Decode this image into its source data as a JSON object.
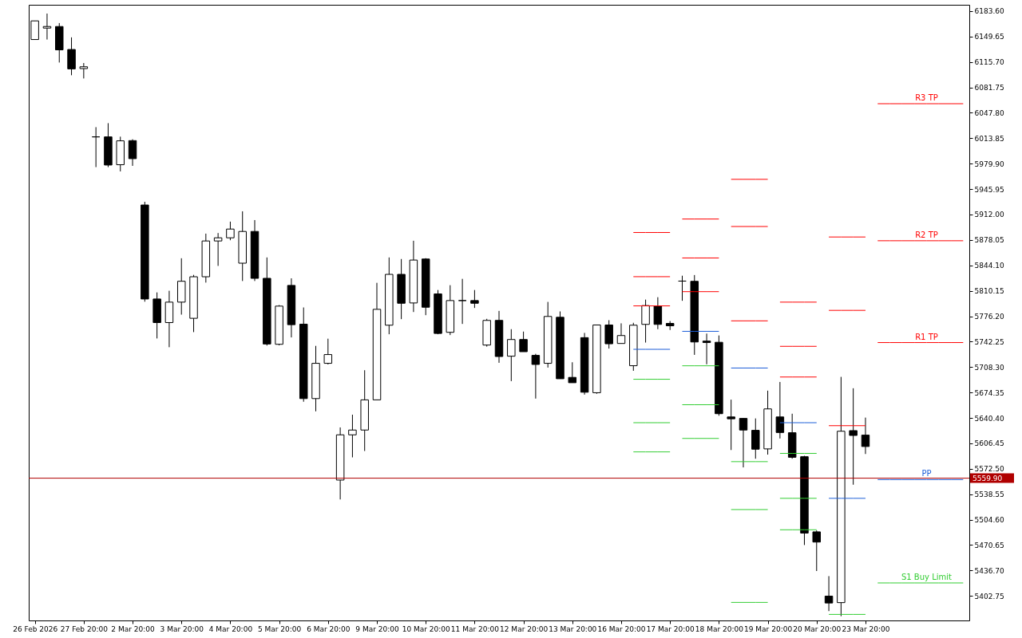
{
  "chart_data": {
    "type": "candlestick",
    "color": "#000000",
    "categories": [
      "26 Feb 2026",
      null,
      null,
      null,
      "27 Feb 20:00",
      null,
      null,
      null,
      "2 Mar 20:00",
      null,
      null,
      null,
      "3 Mar 20:00",
      null,
      null,
      null,
      "4 Mar 20:00",
      null,
      null,
      null,
      "5 Mar 20:00",
      null,
      null,
      null,
      "6 Mar 20:00",
      null,
      null,
      null,
      "9 Mar 20:00",
      null,
      null,
      null,
      "10 Mar 20:00",
      null,
      null,
      null,
      "11 Mar 20:00",
      null,
      null,
      null,
      "12 Mar 20:00",
      null,
      null,
      null,
      "13 Mar 20:00",
      null,
      null,
      null,
      "16 Mar 20:00",
      null,
      null,
      null,
      "17 Mar 20:00",
      null,
      null,
      null,
      "18 Mar 20:00",
      null,
      null,
      null,
      "19 Mar 20:00",
      null,
      null,
      null,
      "20 Mar 20:00",
      null,
      null,
      null,
      "23 Mar 20:00",
      null,
      null,
      null,
      null,
      null,
      null,
      null,
      null
    ],
    "ohlc": [
      [
        6145.7,
        6170.6,
        6145.7,
        6170.6
      ],
      [
        6161.0,
        6180.4,
        6145.7,
        6163.1
      ],
      [
        6163.1,
        6167.7,
        6115.0,
        6131.9
      ],
      [
        6132.4,
        6148.6,
        6098.0,
        6106.5
      ],
      [
        6106.9,
        6114.3,
        6093.7,
        6109.3
      ],
      [
        6015.7,
        6028.7,
        5975.3,
        6015.7
      ],
      [
        6015.7,
        6034.0,
        5975.3,
        5978.1
      ],
      [
        5978.5,
        6016.0,
        5969.6,
        6010.4
      ],
      [
        6010.7,
        6012.5,
        5977.0,
        5986.6
      ],
      [
        5924.7,
        5929.0,
        5795.6,
        5799.2
      ],
      [
        5799.2,
        5808.0,
        5746.5,
        5767.7
      ],
      [
        5767.7,
        5810.2,
        5734.8,
        5795.0
      ],
      [
        5795.0,
        5853.6,
        5778.3,
        5822.9
      ],
      [
        5773.4,
        5831.4,
        5755.0,
        5828.9
      ],
      [
        5828.9,
        5886.5,
        5821.1,
        5876.7
      ],
      [
        5876.7,
        5887.3,
        5843.4,
        5880.9
      ],
      [
        5880.9,
        5902.5,
        5877.7,
        5892.6
      ],
      [
        5847.0,
        5916.3,
        5823.2,
        5889.4
      ],
      [
        5889.4,
        5904.6,
        5823.2,
        5826.8
      ],
      [
        5826.8,
        5854.7,
        5737.0,
        5739.1
      ],
      [
        5738.7,
        5791.1,
        5737.3,
        5789.7
      ],
      [
        5817.3,
        5826.8,
        5747.9,
        5764.9
      ],
      [
        5765.6,
        5787.9,
        5662.0,
        5666.2
      ],
      [
        5666.2,
        5736.6,
        5649.2,
        5713.3
      ],
      [
        5713.3,
        5746.2,
        5711.8,
        5725.0
      ],
      [
        5557.4,
        5627.7,
        5531.5,
        5617.8
      ],
      [
        5617.8,
        5644.7,
        5587.7,
        5624.2
      ],
      [
        5624.2,
        5704.1,
        5596.2,
        5664.5
      ],
      [
        5664.5,
        5820.8,
        5664.5,
        5785.4
      ],
      [
        5764.2,
        5854.7,
        5752.1,
        5832.1
      ],
      [
        5832.1,
        5852.6,
        5772.3,
        5793.5
      ],
      [
        5793.9,
        5877.0,
        5781.8,
        5851.2
      ],
      [
        5852.6,
        5853.7,
        5777.6,
        5788.2
      ],
      [
        5806.0,
        5811.2,
        5752.1,
        5753.2
      ],
      [
        5754.7,
        5817.6,
        5751.0,
        5797.1
      ],
      [
        5797.1,
        5826.1,
        5765.9,
        5797.1
      ],
      [
        5797.1,
        5811.2,
        5787.2,
        5793.5
      ],
      [
        5737.7,
        5772.7,
        5735.6,
        5770.6
      ],
      [
        5770.6,
        5783.3,
        5714.0,
        5722.4
      ],
      [
        5722.8,
        5758.9,
        5689.5,
        5745.1
      ],
      [
        5745.1,
        5755.7,
        5728.8,
        5728.8
      ],
      [
        5723.9,
        5726.0,
        5666.2,
        5711.8
      ],
      [
        5713.3,
        5795.3,
        5707.6,
        5775.9
      ],
      [
        5774.8,
        5782.6,
        5692.7,
        5692.7
      ],
      [
        5694.5,
        5714.7,
        5687.4,
        5687.4
      ],
      [
        5747.6,
        5753.9,
        5671.5,
        5674.7
      ],
      [
        5674.0,
        5764.5,
        5672.6,
        5764.5
      ],
      [
        5764.5,
        5770.9,
        5733.0,
        5739.4
      ],
      [
        5739.8,
        5766.7,
        5739.8,
        5750.4
      ],
      [
        5710.1,
        5767.4,
        5703.3,
        5764.2
      ],
      [
        5765.3,
        5798.4,
        5741.0,
        5790.4
      ],
      [
        5789.7,
        5801.6,
        5758.9,
        5765.3
      ],
      [
        5766.6,
        5769.7,
        5757.8,
        5763.4
      ],
      [
        5823.1,
        5830.3,
        5796.8,
        5823.1
      ],
      [
        5822.8,
        5831.2,
        5724.6,
        5741.8
      ],
      [
        5743.0,
        5753.0,
        5712.0,
        5741.0
      ],
      [
        5741.4,
        5750.5,
        5643.3,
        5646.0
      ],
      [
        5641.7,
        5664.8,
        5597.5,
        5639.2
      ],
      [
        5639.7,
        5639.7,
        5574.3,
        5624.2
      ],
      [
        5623.8,
        5639.7,
        5585.9,
        5598.6
      ],
      [
        5599.0,
        5676.8,
        5591.4,
        5652.4
      ],
      [
        5641.7,
        5688.4,
        5612.9,
        5620.9
      ],
      [
        5620.6,
        5646.0,
        5585.9,
        5587.8
      ],
      [
        5588.6,
        5589.8,
        5470.6,
        5486.6
      ],
      [
        5488.2,
        5490.1,
        5435.9,
        5474.6
      ],
      [
        5402.4,
        5429.1,
        5382.4,
        5393.2
      ],
      [
        5393.7,
        5695.2,
        5375.6,
        5622.6
      ],
      [
        5623.4,
        5680.0,
        5551.2,
        5617.0
      ],
      [
        5617.4,
        5640.8,
        5592.2,
        5602.2
      ],
      null,
      null,
      null,
      null,
      null,
      null,
      null,
      null
    ],
    "series": [
      {
        "type": "line",
        "color": "#ff0000",
        "values": [
          null,
          null,
          null,
          null,
          null,
          null,
          null,
          null,
          null,
          null,
          null,
          null,
          null,
          null,
          null,
          null,
          null,
          null,
          null,
          null,
          null,
          null,
          null,
          null,
          null,
          null,
          null,
          null,
          null,
          null,
          null,
          null,
          null,
          null,
          null,
          null,
          null,
          null,
          null,
          null,
          null,
          null,
          null,
          null,
          null,
          null,
          null,
          null,
          null,
          5888,
          5888,
          5888,
          5888,
          5906,
          5906,
          5906,
          5906,
          5959,
          5959,
          5959,
          5959,
          5795,
          5795,
          5795,
          5795,
          5882,
          5882,
          5882,
          5882,
          null,
          null,
          null,
          null,
          null,
          null,
          null,
          null
        ]
      },
      {
        "type": "line",
        "color": "#ff0000",
        "values": [
          null,
          null,
          null,
          null,
          null,
          null,
          null,
          null,
          null,
          null,
          null,
          null,
          null,
          null,
          null,
          null,
          null,
          null,
          null,
          null,
          null,
          null,
          null,
          null,
          null,
          null,
          null,
          null,
          null,
          null,
          null,
          null,
          null,
          null,
          null,
          null,
          null,
          null,
          null,
          null,
          null,
          null,
          null,
          null,
          null,
          null,
          null,
          null,
          null,
          5829,
          5829,
          5829,
          5829,
          5854,
          5854,
          5854,
          5854,
          5896,
          5896,
          5896,
          5896,
          5736,
          5736,
          5736,
          5736,
          5784,
          5784,
          5784,
          5784,
          null,
          null,
          null,
          null,
          null,
          null,
          null,
          null
        ]
      },
      {
        "type": "line",
        "color": "#ff0000",
        "values": [
          null,
          null,
          null,
          null,
          null,
          null,
          null,
          null,
          null,
          null,
          null,
          null,
          null,
          null,
          null,
          null,
          null,
          null,
          null,
          null,
          null,
          null,
          null,
          null,
          null,
          null,
          null,
          null,
          null,
          null,
          null,
          null,
          null,
          null,
          null,
          null,
          null,
          null,
          null,
          null,
          null,
          null,
          null,
          null,
          null,
          null,
          null,
          null,
          null,
          5790,
          5790,
          5790,
          5790,
          5809,
          5809,
          5809,
          5809,
          5770,
          5770,
          5770,
          5770,
          5695,
          5695,
          5695,
          5695,
          5630,
          5630,
          5630,
          5630,
          null,
          null,
          null,
          null,
          null,
          null,
          null,
          null
        ]
      },
      {
        "type": "line",
        "color": "#1e5fd8",
        "values": [
          null,
          null,
          null,
          null,
          null,
          null,
          null,
          null,
          null,
          null,
          null,
          null,
          null,
          null,
          null,
          null,
          null,
          null,
          null,
          null,
          null,
          null,
          null,
          null,
          null,
          null,
          null,
          null,
          null,
          null,
          null,
          null,
          null,
          null,
          null,
          null,
          null,
          null,
          null,
          null,
          null,
          null,
          null,
          null,
          null,
          null,
          null,
          null,
          null,
          5732,
          5732,
          5732,
          5732,
          5756,
          5756,
          5756,
          5756,
          5707,
          5707,
          5707,
          5707,
          5634,
          5634,
          5634,
          5634,
          5533,
          5533,
          5533,
          5533,
          null,
          null,
          null,
          null,
          null,
          null,
          null,
          null
        ]
      },
      {
        "type": "line",
        "color": "#32cd32",
        "values": [
          null,
          null,
          null,
          null,
          null,
          null,
          null,
          null,
          null,
          null,
          null,
          null,
          null,
          null,
          null,
          null,
          null,
          null,
          null,
          null,
          null,
          null,
          null,
          null,
          null,
          null,
          null,
          null,
          null,
          null,
          null,
          null,
          null,
          null,
          null,
          null,
          null,
          null,
          null,
          null,
          null,
          null,
          null,
          null,
          null,
          null,
          null,
          null,
          null,
          5692,
          5692,
          5692,
          5692,
          5710,
          5710,
          5710,
          5710,
          5582,
          5582,
          5582,
          5582,
          5593,
          5593,
          5593,
          5593,
          5378,
          5378,
          5378,
          5378,
          null,
          null,
          null,
          null,
          null,
          null,
          null,
          null
        ]
      },
      {
        "type": "line",
        "color": "#32cd32",
        "values": [
          null,
          null,
          null,
          null,
          null,
          null,
          null,
          null,
          null,
          null,
          null,
          null,
          null,
          null,
          null,
          null,
          null,
          null,
          null,
          null,
          null,
          null,
          null,
          null,
          null,
          null,
          null,
          null,
          null,
          null,
          null,
          null,
          null,
          null,
          null,
          null,
          null,
          null,
          null,
          null,
          null,
          null,
          null,
          null,
          null,
          null,
          null,
          null,
          null,
          5634,
          5634,
          5634,
          5634,
          5658,
          5658,
          5658,
          5658,
          5518,
          5518,
          5518,
          5518,
          5533,
          5533,
          5533,
          5533,
          null,
          null,
          null,
          null,
          null,
          null,
          null,
          null,
          null,
          null,
          null,
          null
        ]
      },
      {
        "type": "line",
        "color": "#32cd32",
        "values": [
          null,
          null,
          null,
          null,
          null,
          null,
          null,
          null,
          null,
          null,
          null,
          null,
          null,
          null,
          null,
          null,
          null,
          null,
          null,
          null,
          null,
          null,
          null,
          null,
          null,
          null,
          null,
          null,
          null,
          null,
          null,
          null,
          null,
          null,
          null,
          null,
          null,
          null,
          null,
          null,
          null,
          null,
          null,
          null,
          null,
          null,
          null,
          null,
          null,
          5595,
          5595,
          5595,
          5595,
          5613,
          5613,
          5613,
          5613,
          5394,
          5394,
          5394,
          5394,
          5491,
          5491,
          5491,
          5491,
          null,
          null,
          null,
          null,
          null,
          null,
          null,
          null,
          null,
          null,
          null,
          null
        ]
      },
      {
        "type": "line",
        "name": "R3 TP",
        "color": "#ff0000",
        "values": [
          null,
          null,
          null,
          null,
          null,
          null,
          null,
          null,
          null,
          null,
          null,
          null,
          null,
          null,
          null,
          null,
          null,
          null,
          null,
          null,
          null,
          null,
          null,
          null,
          null,
          null,
          null,
          null,
          null,
          null,
          null,
          null,
          null,
          null,
          null,
          null,
          null,
          null,
          null,
          null,
          null,
          null,
          null,
          null,
          null,
          null,
          null,
          null,
          null,
          null,
          null,
          null,
          null,
          null,
          null,
          null,
          null,
          null,
          null,
          null,
          null,
          null,
          null,
          null,
          null,
          null,
          null,
          null,
          null,
          6060,
          6060,
          6060,
          6060,
          6060,
          6060,
          6060,
          6060
        ]
      },
      {
        "type": "line",
        "name": "R2 TP",
        "color": "#ff0000",
        "values": [
          null,
          null,
          null,
          null,
          null,
          null,
          null,
          null,
          null,
          null,
          null,
          null,
          null,
          null,
          null,
          null,
          null,
          null,
          null,
          null,
          null,
          null,
          null,
          null,
          null,
          null,
          null,
          null,
          null,
          null,
          null,
          null,
          null,
          null,
          null,
          null,
          null,
          null,
          null,
          null,
          null,
          null,
          null,
          null,
          null,
          null,
          null,
          null,
          null,
          null,
          null,
          null,
          null,
          null,
          null,
          null,
          null,
          null,
          null,
          null,
          null,
          null,
          null,
          null,
          null,
          null,
          null,
          null,
          null,
          5877,
          5877,
          5877,
          5877,
          5877,
          5877,
          5877,
          5877
        ]
      },
      {
        "type": "line",
        "name": "R1 TP",
        "color": "#ff0000",
        "values": [
          null,
          null,
          null,
          null,
          null,
          null,
          null,
          null,
          null,
          null,
          null,
          null,
          null,
          null,
          null,
          null,
          null,
          null,
          null,
          null,
          null,
          null,
          null,
          null,
          null,
          null,
          null,
          null,
          null,
          null,
          null,
          null,
          null,
          null,
          null,
          null,
          null,
          null,
          null,
          null,
          null,
          null,
          null,
          null,
          null,
          null,
          null,
          null,
          null,
          null,
          null,
          null,
          null,
          null,
          null,
          null,
          null,
          null,
          null,
          null,
          null,
          null,
          null,
          null,
          null,
          null,
          null,
          null,
          null,
          5741,
          5741,
          5741,
          5741,
          5741,
          5741,
          5741,
          5741
        ]
      },
      {
        "type": "line",
        "name": "PP",
        "color": "#1e5fd8",
        "values": [
          null,
          null,
          null,
          null,
          null,
          null,
          null,
          null,
          null,
          null,
          null,
          null,
          null,
          null,
          null,
          null,
          null,
          null,
          null,
          null,
          null,
          null,
          null,
          null,
          null,
          null,
          null,
          null,
          null,
          null,
          null,
          null,
          null,
          null,
          null,
          null,
          null,
          null,
          null,
          null,
          null,
          null,
          null,
          null,
          null,
          null,
          null,
          null,
          null,
          null,
          null,
          null,
          null,
          null,
          null,
          null,
          null,
          null,
          null,
          null,
          null,
          null,
          null,
          null,
          null,
          null,
          null,
          null,
          null,
          5558,
          5558,
          5558,
          5558,
          5558,
          5558,
          5558,
          5558
        ]
      },
      {
        "type": "line",
        "name": "S1 Buy Limit",
        "color": "#32cd32",
        "values": [
          null,
          null,
          null,
          null,
          null,
          null,
          null,
          null,
          null,
          null,
          null,
          null,
          null,
          null,
          null,
          null,
          null,
          null,
          null,
          null,
          null,
          null,
          null,
          null,
          null,
          null,
          null,
          null,
          null,
          null,
          null,
          null,
          null,
          null,
          null,
          null,
          null,
          null,
          null,
          null,
          null,
          null,
          null,
          null,
          null,
          null,
          null,
          null,
          null,
          null,
          null,
          null,
          null,
          null,
          null,
          null,
          null,
          null,
          null,
          null,
          null,
          null,
          null,
          null,
          null,
          null,
          null,
          null,
          null,
          5420,
          5420,
          5420,
          5420,
          5420,
          5420,
          5420,
          5420
        ]
      }
    ],
    "ylim": [
      5369.9,
      6192.1
    ],
    "yticks": [
      {
        "value": 5402.75,
        "label": "5402.75"
      },
      {
        "value": 5436.7,
        "label": "5436.70"
      },
      {
        "value": 5470.65,
        "label": "5470.65"
      },
      {
        "value": 5504.6,
        "label": "5504.60"
      },
      {
        "value": 5538.55,
        "label": "5538.55"
      },
      {
        "value": 5572.5,
        "label": "5572.50"
      },
      {
        "value": 5606.45,
        "label": "5606.45"
      },
      {
        "value": 5640.4,
        "label": "5640.40"
      },
      {
        "value": 5674.35,
        "label": "5674.35"
      },
      {
        "value": 5708.3,
        "label": "5708.30"
      },
      {
        "value": 5742.25,
        "label": "5742.25"
      },
      {
        "value": 5776.2,
        "label": "5776.20"
      },
      {
        "value": 5810.15,
        "label": "5810.15"
      },
      {
        "value": 5844.1,
        "label": "5844.10"
      },
      {
        "value": 5878.05,
        "label": "5878.05"
      },
      {
        "value": 5912,
        "label": "5912.00"
      },
      {
        "value": 5945.95,
        "label": "5945.95"
      },
      {
        "value": 5979.9,
        "label": "5979.90"
      },
      {
        "value": 6013.85,
        "label": "6013.85"
      },
      {
        "value": 6047.8,
        "label": "6047.80"
      },
      {
        "value": 6081.75,
        "label": "6081.75"
      },
      {
        "value": 6115.7,
        "label": "6115.70"
      },
      {
        "value": 6149.65,
        "label": "6149.65"
      },
      {
        "value": 6183.6,
        "label": "6183.60"
      }
    ],
    "ref_lines": [
      {
        "axis": "y",
        "value": 5559.9,
        "label": "5559.90",
        "color": "#b00000"
      }
    ]
  }
}
